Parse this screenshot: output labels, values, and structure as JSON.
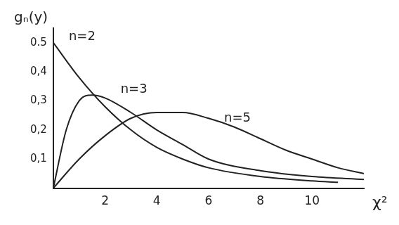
{
  "chart_data": {
    "type": "line",
    "y_label": "gₙ(y)",
    "x_label": "χ²",
    "xlim": [
      0,
      12
    ],
    "xticks": [
      2,
      4,
      6,
      8,
      10
    ],
    "ylim": [
      0,
      0.55
    ],
    "yticks": [
      {
        "value": 0.1,
        "label": "0,1"
      },
      {
        "value": 0.2,
        "label": "0,2"
      },
      {
        "value": 0.3,
        "label": "0,3"
      },
      {
        "value": 0.4,
        "label": "0,4"
      },
      {
        "value": 0.5,
        "label": "0.5"
      }
    ],
    "grid": false,
    "series": [
      {
        "name": "n=2",
        "color": "#222222",
        "x": [
          0,
          1,
          2,
          3,
          4,
          5,
          6,
          8,
          10,
          11
        ],
        "values": [
          0.5,
          0.38,
          0.28,
          0.2,
          0.14,
          0.1,
          0.07,
          0.04,
          0.025,
          0.02
        ]
      },
      {
        "name": "n=3",
        "color": "#222222",
        "x": [
          0,
          0.5,
          1,
          1.5,
          2,
          3,
          4,
          5,
          6,
          8,
          10,
          12
        ],
        "values": [
          0,
          0.2,
          0.3,
          0.32,
          0.31,
          0.26,
          0.2,
          0.15,
          0.1,
          0.06,
          0.04,
          0.03
        ]
      },
      {
        "name": "n=5",
        "color": "#222222",
        "x": [
          0,
          1,
          2,
          3,
          4,
          5,
          6,
          7,
          8,
          9,
          10,
          11,
          12
        ],
        "values": [
          0,
          0.1,
          0.18,
          0.24,
          0.26,
          0.26,
          0.24,
          0.21,
          0.17,
          0.13,
          0.1,
          0.07,
          0.05
        ]
      }
    ],
    "annotations": [
      {
        "text": "n=2",
        "x": 0.6,
        "y": 0.52
      },
      {
        "text": "n=3",
        "x": 2.6,
        "y": 0.34
      },
      {
        "text": "n=5",
        "x": 6.6,
        "y": 0.24
      }
    ]
  }
}
